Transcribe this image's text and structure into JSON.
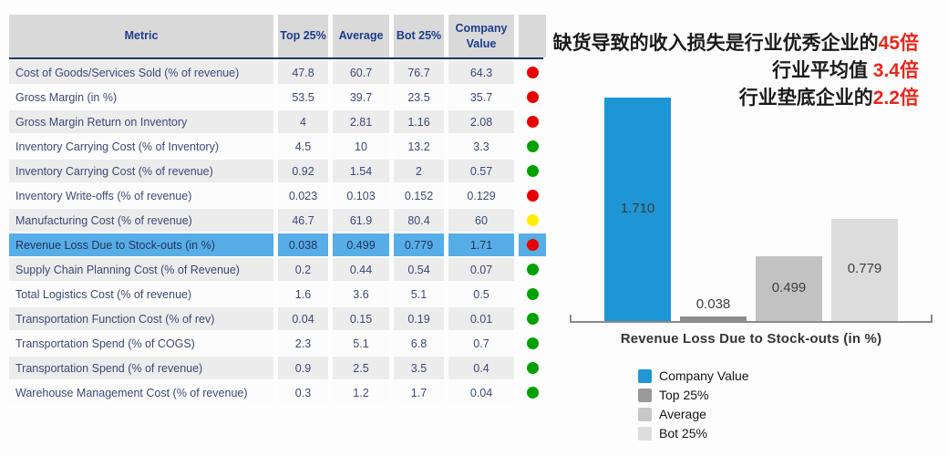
{
  "table": {
    "headers": [
      "Metric",
      "Top 25%",
      "Average",
      "Bot 25%",
      "Company Value"
    ],
    "rows": [
      {
        "metric": "Cost of Goods/Services Sold (% of revenue)",
        "top25": "47.8",
        "average": "60.7",
        "bot25": "76.7",
        "company": "64.3",
        "status": "red",
        "highlighted": false
      },
      {
        "metric": "Gross Margin (in %)",
        "top25": "53.5",
        "average": "39.7",
        "bot25": "23.5",
        "company": "35.7",
        "status": "red",
        "highlighted": false
      },
      {
        "metric": "Gross Margin Return on Inventory",
        "top25": "4",
        "average": "2.81",
        "bot25": "1.16",
        "company": "2.08",
        "status": "red",
        "highlighted": false
      },
      {
        "metric": "Inventory Carrying Cost (% of Inventory)",
        "top25": "4.5",
        "average": "10",
        "bot25": "13.2",
        "company": "3.3",
        "status": "green",
        "highlighted": false
      },
      {
        "metric": "Inventory Carrying Cost (% of revenue)",
        "top25": "0.92",
        "average": "1.54",
        "bot25": "2",
        "company": "0.57",
        "status": "green",
        "highlighted": false
      },
      {
        "metric": "Inventory Write-offs (% of revenue)",
        "top25": "0.023",
        "average": "0.103",
        "bot25": "0.152",
        "company": "0.129",
        "status": "red",
        "highlighted": false
      },
      {
        "metric": "Manufacturing Cost (% of revenue)",
        "top25": "46.7",
        "average": "61.9",
        "bot25": "80.4",
        "company": "60",
        "status": "yellow",
        "highlighted": false
      },
      {
        "metric": "Revenue Loss Due to Stock-outs (in %)",
        "top25": "0.038",
        "average": "0.499",
        "bot25": "0.779",
        "company": "1.71",
        "status": "red",
        "highlighted": true
      },
      {
        "metric": "Supply Chain Planning Cost (% of Revenue)",
        "top25": "0.2",
        "average": "0.44",
        "bot25": "0.54",
        "company": "0.07",
        "status": "green",
        "highlighted": false
      },
      {
        "metric": "Total Logistics Cost (% of revenue)",
        "top25": "1.6",
        "average": "3.6",
        "bot25": "5.1",
        "company": "0.5",
        "status": "green",
        "highlighted": false
      },
      {
        "metric": "Transportation Function Cost (% of rev)",
        "top25": "0.04",
        "average": "0.15",
        "bot25": "0.19",
        "company": "0.01",
        "status": "green",
        "highlighted": false
      },
      {
        "metric": "Transportation Spend (% of COGS)",
        "top25": "2.3",
        "average": "5.1",
        "bot25": "6.8",
        "company": "0.7",
        "status": "green",
        "highlighted": false
      },
      {
        "metric": "Transportation Spend (% of revenue)",
        "top25": "0.9",
        "average": "2.5",
        "bot25": "3.5",
        "company": "0.4",
        "status": "green",
        "highlighted": false
      },
      {
        "metric": "Warehouse Management Cost (% of revenue)",
        "top25": "0.3",
        "average": "1.2",
        "bot25": "1.7",
        "company": "0.04",
        "status": "green",
        "highlighted": false
      }
    ],
    "highlight_row_color": "#57ade6",
    "header_bg_color": "#d9d9d9",
    "header_text_color": "#1e3c8c"
  },
  "status_colors": {
    "red": "#e60000",
    "green": "#00a000",
    "yellow": "#ffee00"
  },
  "annotation": {
    "lines": [
      {
        "prefix": "缺货导致的收入损失是行业优秀企业的",
        "highlight": "45倍"
      },
      {
        "prefix": "行业平均值 ",
        "highlight": "3.4倍"
      },
      {
        "prefix": "行业垫底企业的",
        "highlight": "2.2倍"
      }
    ],
    "highlight_color": "#e8281e"
  },
  "chart_data": {
    "type": "bar",
    "title": "",
    "xlabel": "Revenue Loss Due to Stock-outs (in %)",
    "ylabel": "",
    "categories": [
      "Company Value",
      "Top 25%",
      "Average",
      "Bot 25%"
    ],
    "values": [
      1.71,
      0.038,
      0.499,
      0.779
    ],
    "value_labels": [
      "1.710",
      "0.038",
      "0.499",
      "0.779"
    ],
    "bar_colors": [
      "#1e95d4",
      "#8e8e8e",
      "#c2c2c2",
      "#dcdcdc"
    ],
    "ylim": [
      0,
      1.8
    ],
    "grid": false,
    "legend_position": "bottom-left",
    "legend": [
      {
        "label": "Company Value",
        "color": "#2196d8"
      },
      {
        "label": "Top 25%",
        "color": "#9a9a9a"
      },
      {
        "label": "Average",
        "color": "#c8c8c8"
      },
      {
        "label": "Bot 25%",
        "color": "#dddddd"
      }
    ]
  }
}
